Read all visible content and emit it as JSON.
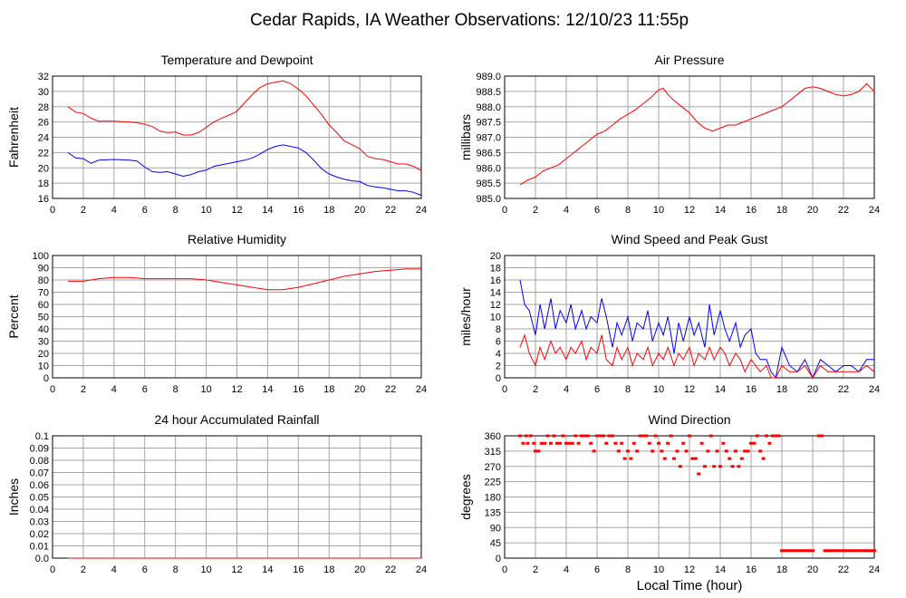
{
  "page_title": "Cedar Rapids, IA Weather Observations: 12/10/23 11:55p",
  "x_axis": {
    "label": "Local Time (hour)",
    "ticks": [
      0,
      2,
      4,
      6,
      8,
      10,
      12,
      14,
      16,
      18,
      20,
      22,
      24
    ],
    "tick_labels": [
      "0",
      "2",
      "4",
      "6",
      "8",
      "10",
      "12",
      "14",
      "16",
      "18",
      "20",
      "22",
      "24"
    ],
    "range": [
      0,
      24
    ]
  },
  "colors": {
    "red": "#ff0000",
    "blue": "#0000ff",
    "grid": "#a6a6a6",
    "axis": "#000000"
  },
  "chart_data": [
    {
      "id": "temp",
      "type": "line",
      "title": "Temperature and Dewpoint",
      "ylabel": "Fahrenheit",
      "ylim": [
        16,
        32
      ],
      "yticks": [
        16,
        18,
        20,
        22,
        24,
        26,
        28,
        30,
        32
      ],
      "ytick_labels": [
        "16",
        "18",
        "20",
        "22",
        "24",
        "26",
        "28",
        "30",
        "32"
      ],
      "grid": true,
      "series": [
        {
          "color": "#ff0000",
          "x": [
            1,
            1.5,
            2,
            2.5,
            3,
            4,
            5,
            5.5,
            6,
            6.5,
            7,
            7.5,
            8,
            8.5,
            9,
            9.5,
            10,
            10.5,
            11,
            11.5,
            12,
            12.5,
            13,
            13.5,
            14,
            14.5,
            15,
            15.5,
            16,
            16.5,
            17,
            17.5,
            18,
            18.5,
            19,
            19.5,
            20,
            20.5,
            21,
            21.5,
            22,
            22.5,
            23,
            23.5,
            24
          ],
          "y": [
            28,
            27.3,
            27.1,
            26.5,
            26.1,
            26.1,
            26,
            25.9,
            25.7,
            25.4,
            24.8,
            24.6,
            24.7,
            24.3,
            24.3,
            24.6,
            25.3,
            26,
            26.5,
            26.9,
            27.4,
            28.5,
            29.6,
            30.5,
            31,
            31.2,
            31.4,
            31,
            30.3,
            29.4,
            28.2,
            27,
            25.6,
            24.6,
            23.5,
            23,
            22.5,
            21.5,
            21.2,
            21.1,
            20.8,
            20.5,
            20.5,
            20.2,
            19.6
          ]
        },
        {
          "color": "#0000ff",
          "x": [
            1,
            1.5,
            2,
            2.5,
            3,
            4,
            5,
            5.5,
            6,
            6.5,
            7,
            7.5,
            8,
            8.5,
            9,
            9.5,
            10,
            10.5,
            11,
            11.5,
            12,
            12.5,
            13,
            13.5,
            14,
            14.5,
            15,
            15.5,
            16,
            16.5,
            17,
            17.5,
            18,
            18.5,
            19,
            19.5,
            20,
            20.5,
            21,
            21.5,
            22,
            22.5,
            23,
            23.5,
            24
          ],
          "y": [
            22,
            21.3,
            21.2,
            20.6,
            21,
            21.1,
            21,
            20.9,
            20.1,
            19.5,
            19.4,
            19.5,
            19.2,
            18.9,
            19.1,
            19.5,
            19.7,
            20.2,
            20.4,
            20.6,
            20.8,
            21,
            21.3,
            21.8,
            22.4,
            22.8,
            23,
            22.8,
            22.6,
            22,
            21,
            19.9,
            19.2,
            18.8,
            18.5,
            18.3,
            18.2,
            17.7,
            17.5,
            17.4,
            17.2,
            17,
            17,
            16.8,
            16.4
          ]
        }
      ]
    },
    {
      "id": "pressure",
      "type": "line",
      "title": "Air Pressure",
      "ylabel": "millibars",
      "ylim": [
        985.0,
        989.0
      ],
      "yticks": [
        985.0,
        985.5,
        986.0,
        986.5,
        987.0,
        987.5,
        988.0,
        988.5,
        989.0
      ],
      "ytick_labels": [
        "985.0",
        "985.5",
        "986.0",
        "986.5",
        "987.0",
        "987.5",
        "988.0",
        "988.5",
        "989.0"
      ],
      "grid": true,
      "series": [
        {
          "color": "#ff0000",
          "x": [
            1,
            1.5,
            2,
            2.5,
            3,
            3.5,
            4,
            4.5,
            5,
            5.5,
            6,
            6.5,
            7,
            7.5,
            8,
            8.5,
            9,
            9.5,
            10,
            10.3,
            10.6,
            11,
            11.5,
            12,
            12.5,
            13,
            13.5,
            14,
            14.5,
            15,
            15.5,
            16,
            16.5,
            17,
            17.5,
            18,
            18.5,
            19,
            19.5,
            20,
            20.5,
            21,
            21.5,
            22,
            22.5,
            23,
            23.5,
            24
          ],
          "y": [
            985.45,
            985.6,
            985.7,
            985.9,
            986.0,
            986.1,
            986.3,
            986.5,
            986.7,
            986.9,
            987.1,
            987.2,
            987.4,
            987.6,
            987.75,
            987.9,
            988.1,
            988.3,
            988.55,
            988.6,
            988.4,
            988.2,
            988.0,
            987.8,
            987.5,
            987.3,
            987.2,
            987.3,
            987.4,
            987.4,
            987.5,
            987.6,
            987.7,
            987.8,
            987.9,
            988.0,
            988.2,
            988.4,
            988.6,
            988.65,
            988.6,
            988.5,
            988.4,
            988.35,
            988.4,
            988.5,
            988.75,
            988.5
          ]
        }
      ]
    },
    {
      "id": "humidity",
      "type": "line",
      "title": "Relative Humidity",
      "ylabel": "Percent",
      "ylim": [
        0,
        100
      ],
      "yticks": [
        0,
        10,
        20,
        30,
        40,
        50,
        60,
        70,
        80,
        90,
        100
      ],
      "ytick_labels": [
        "0",
        "10",
        "20",
        "30",
        "40",
        "50",
        "60",
        "70",
        "80",
        "90",
        "100"
      ],
      "grid": true,
      "series": [
        {
          "color": "#ff0000",
          "x": [
            1,
            2,
            3,
            4,
            5,
            6,
            7,
            8,
            9,
            10,
            11,
            12,
            13,
            14,
            15,
            16,
            17,
            18,
            19,
            20,
            21,
            22,
            23,
            24
          ],
          "y": [
            79,
            79,
            81,
            82,
            82,
            81,
            81,
            81,
            81,
            80,
            78,
            76,
            74,
            72,
            72,
            74,
            77,
            80,
            83,
            85,
            87,
            88,
            89,
            89
          ]
        }
      ]
    },
    {
      "id": "wind",
      "type": "line",
      "title": "Wind Speed and Peak Gust",
      "ylabel": "miles/hour",
      "ylim": [
        0,
        20
      ],
      "yticks": [
        0,
        2,
        4,
        6,
        8,
        10,
        12,
        14,
        16,
        18,
        20
      ],
      "ytick_labels": [
        "0",
        "2",
        "4",
        "6",
        "8",
        "10",
        "12",
        "14",
        "16",
        "18",
        "20"
      ],
      "grid": true,
      "series": [
        {
          "color": "#0000ff",
          "x": [
            1,
            1.3,
            1.6,
            2,
            2.3,
            2.6,
            3,
            3.3,
            3.6,
            4,
            4.3,
            4.6,
            5,
            5.3,
            5.6,
            6,
            6.3,
            6.6,
            7,
            7.3,
            7.6,
            8,
            8.3,
            8.6,
            9,
            9.3,
            9.6,
            10,
            10.3,
            10.6,
            11,
            11.3,
            11.6,
            12,
            12.3,
            12.6,
            13,
            13.3,
            13.6,
            14,
            14.3,
            14.6,
            15,
            15.3,
            15.6,
            16,
            16.3,
            16.6,
            17,
            17.3,
            17.6,
            18,
            18.5,
            19,
            19.5,
            20,
            20.5,
            21,
            21.5,
            22,
            22.5,
            23,
            23.5,
            24
          ],
          "y": [
            16,
            12,
            11,
            7,
            12,
            8,
            13,
            8,
            11,
            9,
            12,
            8,
            11,
            8,
            10,
            9,
            13,
            10,
            5,
            9,
            7,
            10,
            6,
            9,
            8,
            11,
            6,
            9,
            7,
            10,
            4,
            9,
            6,
            10,
            7,
            9,
            5,
            12,
            7,
            11,
            8,
            6,
            9,
            5,
            7,
            8,
            4,
            3,
            3,
            1,
            0,
            5,
            2,
            1,
            3,
            0,
            3,
            2,
            1,
            2,
            2,
            1,
            3,
            3
          ]
        },
        {
          "color": "#ff0000",
          "x": [
            1,
            1.3,
            1.6,
            2,
            2.3,
            2.6,
            3,
            3.3,
            3.6,
            4,
            4.3,
            4.6,
            5,
            5.3,
            5.6,
            6,
            6.3,
            6.6,
            7,
            7.3,
            7.6,
            8,
            8.3,
            8.6,
            9,
            9.3,
            9.6,
            10,
            10.3,
            10.6,
            11,
            11.3,
            11.6,
            12,
            12.3,
            12.6,
            13,
            13.3,
            13.6,
            14,
            14.3,
            14.6,
            15,
            15.3,
            15.6,
            16,
            16.3,
            16.6,
            17,
            17.3,
            17.6,
            18,
            18.5,
            19,
            19.5,
            20,
            20.5,
            21,
            21.5,
            22,
            22.5,
            23,
            23.5,
            24
          ],
          "y": [
            5,
            7,
            4,
            2,
            5,
            3,
            6,
            4,
            5,
            3,
            5,
            4,
            6,
            3,
            5,
            4,
            7,
            3,
            2,
            5,
            3,
            5,
            2,
            4,
            3,
            5,
            2,
            4,
            3,
            5,
            2,
            4,
            3,
            5,
            2,
            4,
            3,
            5,
            3,
            5,
            4,
            2,
            4,
            3,
            1,
            3,
            2,
            1,
            2,
            0,
            0,
            2,
            1,
            1,
            2,
            0,
            2,
            1,
            1,
            1,
            1,
            1,
            2,
            1
          ]
        }
      ]
    },
    {
      "id": "rain",
      "type": "line",
      "title": "24 hour Accumulated Rainfall",
      "ylabel": "Inches",
      "ylim": [
        0.0,
        0.1
      ],
      "yticks": [
        0.0,
        0.01,
        0.02,
        0.03,
        0.04,
        0.05,
        0.06,
        0.07,
        0.08,
        0.09,
        0.1
      ],
      "ytick_labels": [
        "0.0",
        "0.01",
        "0.02",
        "0.03",
        "0.04",
        "0.05",
        "0.06",
        "0.07",
        "0.08",
        "0.09",
        "0.1"
      ],
      "grid": true,
      "series": [
        {
          "color": "#ff0000",
          "x": [
            1,
            24
          ],
          "y": [
            0,
            0
          ]
        }
      ]
    },
    {
      "id": "winddir",
      "type": "scatter",
      "title": "Wind Direction",
      "ylabel": "degrees",
      "ylim": [
        0,
        360
      ],
      "yticks": [
        0,
        45,
        90,
        135,
        180,
        225,
        270,
        315,
        360
      ],
      "ytick_labels": [
        "0",
        "45",
        "90",
        "135",
        "180",
        "225",
        "270",
        "315",
        "360"
      ],
      "grid": true,
      "series": [
        {
          "color": "#ff0000",
          "x": [
            1.0,
            1.2,
            1.4,
            1.5,
            1.7,
            1.9,
            2.0,
            2.2,
            2.4,
            2.6,
            2.8,
            3.0,
            3.2,
            3.4,
            3.6,
            3.8,
            4.0,
            4.2,
            4.4,
            4.6,
            4.8,
            5.0,
            5.2,
            5.4,
            5.6,
            5.8,
            6.0,
            6.2,
            6.4,
            6.6,
            6.8,
            7.0,
            7.2,
            7.4,
            7.6,
            7.8,
            8.0,
            8.2,
            8.4,
            8.6,
            8.8,
            9.0,
            9.2,
            9.4,
            9.6,
            9.8,
            10.0,
            10.2,
            10.4,
            10.6,
            10.8,
            11.0,
            11.2,
            11.4,
            11.6,
            11.8,
            12.0,
            12.2,
            12.4,
            12.6,
            12.8,
            13.0,
            13.2,
            13.4,
            13.6,
            13.8,
            14.0,
            14.2,
            14.4,
            14.6,
            14.8,
            15.0,
            15.2,
            15.4,
            15.6,
            15.8,
            16.0,
            16.2,
            16.4,
            16.6,
            16.8,
            17.0,
            17.2,
            17.4,
            17.6,
            17.8,
            18.0,
            18.2,
            18.4,
            18.6,
            18.8,
            19.0,
            19.2,
            19.4,
            19.6,
            19.8,
            20.0,
            20.4,
            20.6,
            20.8,
            21.0,
            21.2,
            21.4,
            21.6,
            21.8,
            22.0,
            22.2,
            22.4,
            22.6,
            22.8,
            23.0,
            23.2,
            23.4,
            23.6,
            23.8,
            24.0
          ],
          "y": [
            360,
            338,
            360,
            338,
            360,
            338,
            315,
            315,
            338,
            338,
            360,
            338,
            360,
            338,
            338,
            360,
            338,
            338,
            338,
            360,
            338,
            360,
            360,
            360,
            338,
            315,
            360,
            360,
            360,
            338,
            360,
            360,
            338,
            315,
            338,
            293,
            315,
            293,
            338,
            315,
            360,
            360,
            360,
            338,
            315,
            360,
            338,
            315,
            293,
            338,
            360,
            293,
            315,
            270,
            338,
            315,
            360,
            293,
            293,
            248,
            338,
            270,
            315,
            360,
            270,
            315,
            270,
            338,
            315,
            293,
            270,
            315,
            270,
            293,
            315,
            315,
            338,
            338,
            360,
            315,
            293,
            360,
            338,
            360,
            360,
            360,
            22,
            22,
            22,
            22,
            22,
            22,
            22,
            22,
            22,
            22,
            22,
            360,
            360,
            22,
            22,
            22,
            22,
            22,
            22,
            22,
            22,
            22,
            22,
            22,
            22,
            22,
            22,
            22,
            22,
            22
          ]
        }
      ]
    }
  ]
}
